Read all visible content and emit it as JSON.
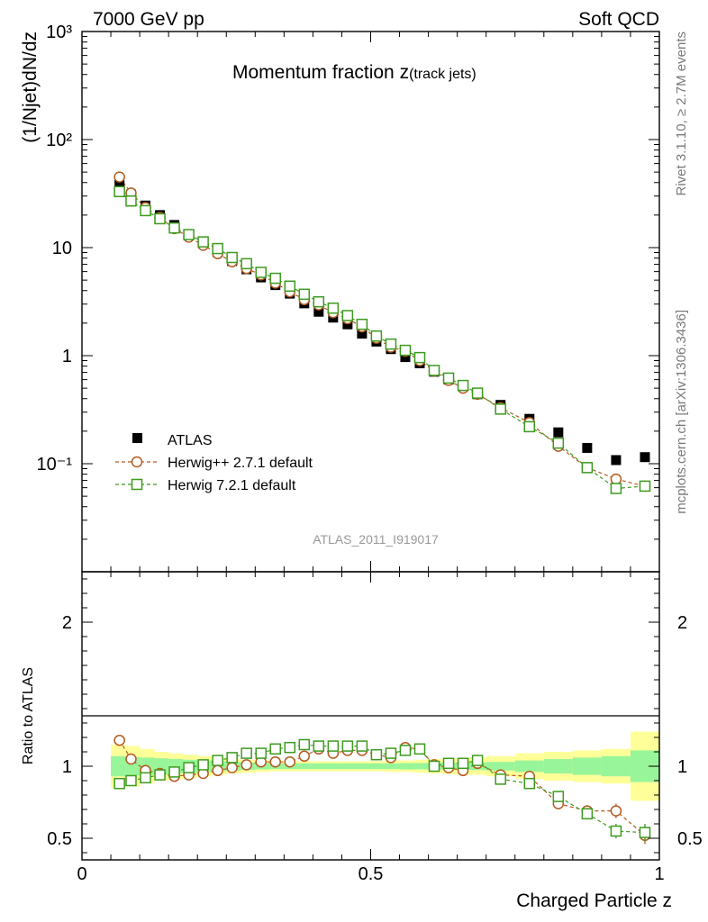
{
  "header": {
    "left": "7000 GeV pp",
    "right": "Soft QCD"
  },
  "side_labels": {
    "rivet": "Rivet 3.1.10, ≥ 2.7M events",
    "source": "mcplots.cern.ch [arXiv:1306.3436]"
  },
  "colors": {
    "atlas": "#000000",
    "herwigpp": "#b35a1f",
    "herwig7": "#3c9b1e",
    "band_inner": "#99f599",
    "band_outer": "#ffff99"
  },
  "chart_data": [
    {
      "type": "scatter",
      "title": "Momentum fraction z",
      "title_sub": "(track jets)",
      "ylabel": "(1/Njet)dN/dz",
      "yscale": "log",
      "ylim": [
        0.01,
        1000
      ],
      "xlim": [
        0,
        1
      ],
      "ytick_labels": [
        "10⁻¹",
        "1",
        "10",
        "10²",
        "10³"
      ],
      "watermark": "ATLAS_2011_I919017",
      "legend_position": "lower-left",
      "series": [
        {
          "name": "ATLAS",
          "marker": "filled-square",
          "x": [
            0.065,
            0.085,
            0.11,
            0.135,
            0.16,
            0.185,
            0.21,
            0.235,
            0.26,
            0.285,
            0.31,
            0.335,
            0.36,
            0.385,
            0.41,
            0.435,
            0.46,
            0.485,
            0.51,
            0.535,
            0.56,
            0.585,
            0.61,
            0.635,
            0.66,
            0.685,
            0.725,
            0.775,
            0.825,
            0.875,
            0.925,
            0.975
          ],
          "values": [
            38,
            31,
            24.5,
            20,
            16.2,
            13.2,
            11,
            9.1,
            7.5,
            6.3,
            5.3,
            4.5,
            3.75,
            3.05,
            2.55,
            2.25,
            1.95,
            1.6,
            1.35,
            1.15,
            0.97,
            0.85,
            0.71,
            0.6,
            0.52,
            0.44,
            0.35,
            0.26,
            0.195,
            0.14,
            0.108,
            0.115
          ]
        },
        {
          "name": "Herwig++ 2.7.1 default",
          "marker": "open-circle",
          "x": [
            0.065,
            0.085,
            0.11,
            0.135,
            0.16,
            0.185,
            0.21,
            0.235,
            0.26,
            0.285,
            0.31,
            0.335,
            0.36,
            0.385,
            0.41,
            0.435,
            0.46,
            0.485,
            0.51,
            0.535,
            0.56,
            0.585,
            0.61,
            0.635,
            0.66,
            0.685,
            0.725,
            0.775,
            0.825,
            0.875,
            0.925,
            0.975
          ],
          "values": [
            45,
            32,
            23.5,
            19,
            15,
            12.5,
            10.5,
            8.8,
            7.4,
            6.4,
            5.6,
            4.7,
            3.9,
            3.3,
            2.95,
            2.5,
            2.2,
            1.85,
            1.45,
            1.2,
            1.1,
            0.9,
            0.72,
            0.59,
            0.5,
            0.44,
            0.33,
            0.24,
            0.145,
            0.092,
            0.072,
            0.062
          ]
        },
        {
          "name": "Herwig 7.2.1 default",
          "marker": "open-square",
          "x": [
            0.065,
            0.085,
            0.11,
            0.135,
            0.16,
            0.185,
            0.21,
            0.235,
            0.26,
            0.285,
            0.31,
            0.335,
            0.36,
            0.385,
            0.41,
            0.435,
            0.46,
            0.485,
            0.51,
            0.535,
            0.56,
            0.585,
            0.61,
            0.635,
            0.66,
            0.685,
            0.725,
            0.775,
            0.825,
            0.875,
            0.925,
            0.975
          ],
          "values": [
            33,
            27,
            22,
            18.5,
            15.2,
            13.2,
            11.3,
            9.8,
            8.1,
            7.1,
            5.9,
            5.2,
            4.4,
            3.7,
            3.15,
            2.75,
            2.35,
            1.95,
            1.52,
            1.28,
            1.12,
            0.96,
            0.73,
            0.62,
            0.53,
            0.45,
            0.32,
            0.22,
            0.155,
            0.092,
            0.059,
            0.062
          ]
        }
      ]
    },
    {
      "type": "scatter",
      "ylabel": "Ratio to ATLAS",
      "xlabel": "Charged Particle z",
      "ylim": [
        0.35,
        2.35
      ],
      "xlim": [
        0,
        1
      ],
      "ytick_labels": [
        "0.5",
        "1",
        "2"
      ],
      "xtick_labels": [
        "0",
        "0.5",
        "1"
      ],
      "reference_line": 1,
      "band_edges": [
        0.05,
        0.075,
        0.1,
        0.125,
        0.15,
        0.175,
        0.2,
        0.225,
        0.25,
        0.275,
        0.3,
        0.325,
        0.35,
        0.375,
        0.4,
        0.425,
        0.45,
        0.475,
        0.5,
        0.525,
        0.55,
        0.575,
        0.6,
        0.625,
        0.65,
        0.675,
        0.7,
        0.75,
        0.8,
        0.85,
        0.9,
        0.95,
        1.0
      ],
      "band_inner_halfwidth": [
        0.07,
        0.065,
        0.06,
        0.055,
        0.05,
        0.045,
        0.04,
        0.035,
        0.03,
        0.025,
        0.022,
        0.02,
        0.02,
        0.02,
        0.02,
        0.02,
        0.02,
        0.02,
        0.02,
        0.02,
        0.022,
        0.022,
        0.025,
        0.025,
        0.025,
        0.027,
        0.03,
        0.04,
        0.05,
        0.06,
        0.07,
        0.11
      ],
      "band_outer_halfwidth": [
        0.15,
        0.14,
        0.12,
        0.1,
        0.09,
        0.08,
        0.07,
        0.06,
        0.05,
        0.045,
        0.04,
        0.035,
        0.035,
        0.035,
        0.035,
        0.035,
        0.035,
        0.035,
        0.035,
        0.04,
        0.04,
        0.045,
        0.05,
        0.055,
        0.06,
        0.06,
        0.07,
        0.09,
        0.1,
        0.11,
        0.12,
        0.24
      ],
      "series": [
        {
          "name": "Herwig++ 2.7.1 default",
          "x": [
            0.065,
            0.085,
            0.11,
            0.135,
            0.16,
            0.185,
            0.21,
            0.235,
            0.26,
            0.285,
            0.31,
            0.335,
            0.36,
            0.385,
            0.41,
            0.435,
            0.46,
            0.485,
            0.51,
            0.535,
            0.56,
            0.585,
            0.61,
            0.635,
            0.66,
            0.685,
            0.725,
            0.775,
            0.825,
            0.875,
            0.925,
            0.975
          ],
          "values": [
            1.18,
            1.05,
            0.97,
            0.95,
            0.93,
            0.94,
            0.95,
            0.97,
            0.99,
            1.01,
            1.03,
            1.03,
            1.03,
            1.07,
            1.12,
            1.09,
            1.11,
            1.11,
            1.08,
            1.06,
            1.13,
            1.12,
            1.01,
            0.99,
            0.97,
            1.02,
            0.94,
            0.93,
            0.74,
            0.69,
            0.69,
            0.52
          ],
          "errors": [
            0.01,
            0.01,
            0.01,
            0.01,
            0.01,
            0.01,
            0.01,
            0.01,
            0.01,
            0.01,
            0.01,
            0.01,
            0.01,
            0.01,
            0.01,
            0.01,
            0.01,
            0.01,
            0.01,
            0.01,
            0.01,
            0.01,
            0.01,
            0.01,
            0.01,
            0.02,
            0.02,
            0.02,
            0.03,
            0.04,
            0.05,
            0.06
          ]
        },
        {
          "name": "Herwig 7.2.1 default",
          "x": [
            0.065,
            0.085,
            0.11,
            0.135,
            0.16,
            0.185,
            0.21,
            0.235,
            0.26,
            0.285,
            0.31,
            0.335,
            0.36,
            0.385,
            0.41,
            0.435,
            0.46,
            0.485,
            0.51,
            0.535,
            0.56,
            0.585,
            0.61,
            0.635,
            0.66,
            0.685,
            0.725,
            0.775,
            0.825,
            0.875,
            0.925,
            0.975
          ],
          "values": [
            0.88,
            0.9,
            0.92,
            0.94,
            0.96,
            0.99,
            1.01,
            1.04,
            1.06,
            1.09,
            1.09,
            1.12,
            1.13,
            1.15,
            1.14,
            1.14,
            1.14,
            1.14,
            1.08,
            1.09,
            1.11,
            1.12,
            1.0,
            1.02,
            1.02,
            1.04,
            0.91,
            0.88,
            0.79,
            0.67,
            0.55,
            0.54
          ],
          "errors": [
            0.01,
            0.01,
            0.01,
            0.01,
            0.01,
            0.01,
            0.01,
            0.01,
            0.01,
            0.01,
            0.01,
            0.01,
            0.01,
            0.01,
            0.01,
            0.01,
            0.01,
            0.01,
            0.01,
            0.01,
            0.01,
            0.01,
            0.01,
            0.01,
            0.01,
            0.02,
            0.02,
            0.02,
            0.03,
            0.04,
            0.05,
            0.06
          ]
        }
      ]
    }
  ]
}
